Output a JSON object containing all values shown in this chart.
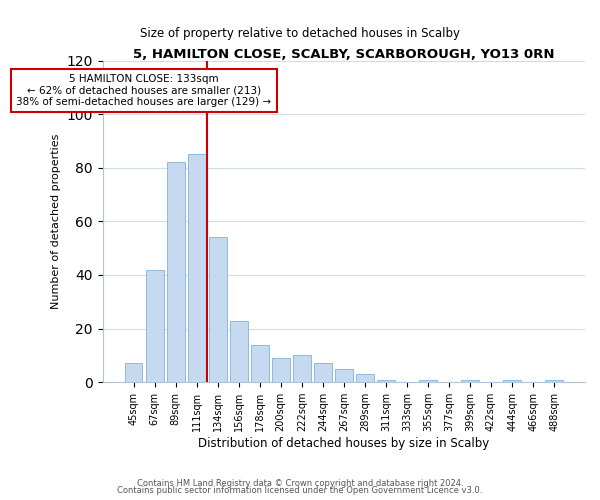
{
  "title": "5, HAMILTON CLOSE, SCALBY, SCARBOROUGH, YO13 0RN",
  "subtitle": "Size of property relative to detached houses in Scalby",
  "xlabel": "Distribution of detached houses by size in Scalby",
  "ylabel": "Number of detached properties",
  "bar_labels": [
    "45sqm",
    "67sqm",
    "89sqm",
    "111sqm",
    "134sqm",
    "156sqm",
    "178sqm",
    "200sqm",
    "222sqm",
    "244sqm",
    "267sqm",
    "289sqm",
    "311sqm",
    "333sqm",
    "355sqm",
    "377sqm",
    "399sqm",
    "422sqm",
    "444sqm",
    "466sqm",
    "488sqm"
  ],
  "bar_values": [
    7,
    42,
    82,
    85,
    54,
    23,
    14,
    9,
    10,
    7,
    5,
    3,
    1,
    0,
    1,
    0,
    1,
    0,
    1,
    0,
    1
  ],
  "bar_color": "#c5daf0",
  "bar_edge_color": "#7fb3d8",
  "vline_color": "#cc0000",
  "ylim": [
    0,
    120
  ],
  "yticks": [
    0,
    20,
    40,
    60,
    80,
    100,
    120
  ],
  "annotation_title": "5 HAMILTON CLOSE: 133sqm",
  "annotation_line1": "← 62% of detached houses are smaller (213)",
  "annotation_line2": "38% of semi-detached houses are larger (129) →",
  "annotation_box_color": "white",
  "annotation_box_edge": "#cc0000",
  "footer1": "Contains HM Land Registry data © Crown copyright and database right 2024.",
  "footer2": "Contains public sector information licensed under the Open Government Licence v3.0.",
  "background_color": "white",
  "plot_background": "white",
  "grid_color": "#d0dce8",
  "vline_bar_index": 4
}
